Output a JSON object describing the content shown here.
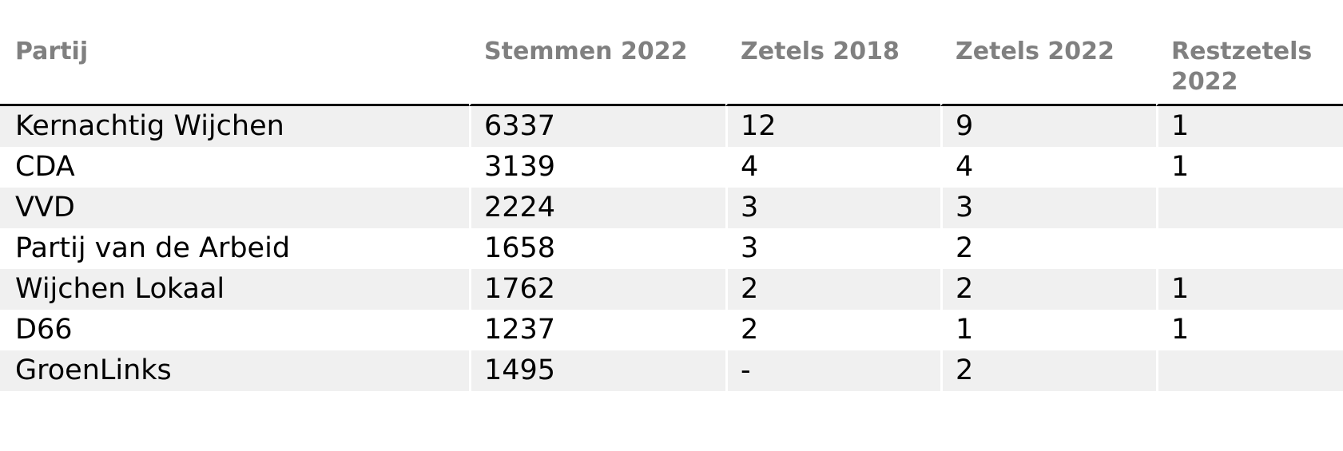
{
  "chart_data": {
    "type": "table",
    "columns": [
      "Partij",
      "Stemmen 2022",
      "Zetels 2018",
      "Zetels 2022",
      "Restzetels 2022"
    ],
    "rows": [
      [
        "Kernachtig Wijchen",
        "6337",
        "12",
        "9",
        "1"
      ],
      [
        "CDA",
        "3139",
        "4",
        "4",
        "1"
      ],
      [
        "VVD",
        "2224",
        "3",
        "3",
        ""
      ],
      [
        "Partij van de Arbeid",
        "1658",
        "3",
        "2",
        ""
      ],
      [
        "Wijchen Lokaal",
        "1762",
        "2",
        "2",
        "1"
      ],
      [
        "D66",
        "1237",
        "2",
        "1",
        "1"
      ],
      [
        "GroenLinks",
        "1495",
        "-",
        "2",
        ""
      ]
    ],
    "layout": {
      "striped_rows": true,
      "stripe_on": "odd",
      "header_rule": true
    }
  },
  "colors": {
    "background": "#ffffff",
    "row_stripe": "#f0f0f0",
    "header_text": "#808080",
    "body_text": "#000000",
    "header_border": "#000000"
  }
}
